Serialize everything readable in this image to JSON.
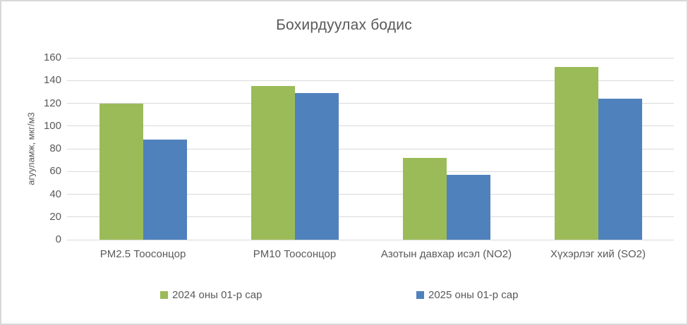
{
  "chart_data": {
    "type": "bar",
    "title": "Бохирдуулах бодис",
    "categories": [
      "PM2.5 Тоосонцор",
      "PM10 Тоосонцор",
      "Азотын давхар исэл (NO2)",
      "Хүхэрлэг хий (SO2)"
    ],
    "series": [
      {
        "name": "2024 оны 01-р сар",
        "color": "#9BBB59",
        "values": [
          120,
          135,
          72,
          152
        ]
      },
      {
        "name": "2025 оны 01-р сар",
        "color": "#4F81BD",
        "values": [
          88,
          129,
          57,
          124
        ]
      }
    ],
    "xlabel": "",
    "ylabel": "агууламж, мкг/м3",
    "ylim": [
      0,
      160
    ],
    "ytick_step": 20,
    "grid": true,
    "legend_position": "bottom",
    "gridline_color": "#D9D9D9",
    "text_color": "#595959"
  }
}
